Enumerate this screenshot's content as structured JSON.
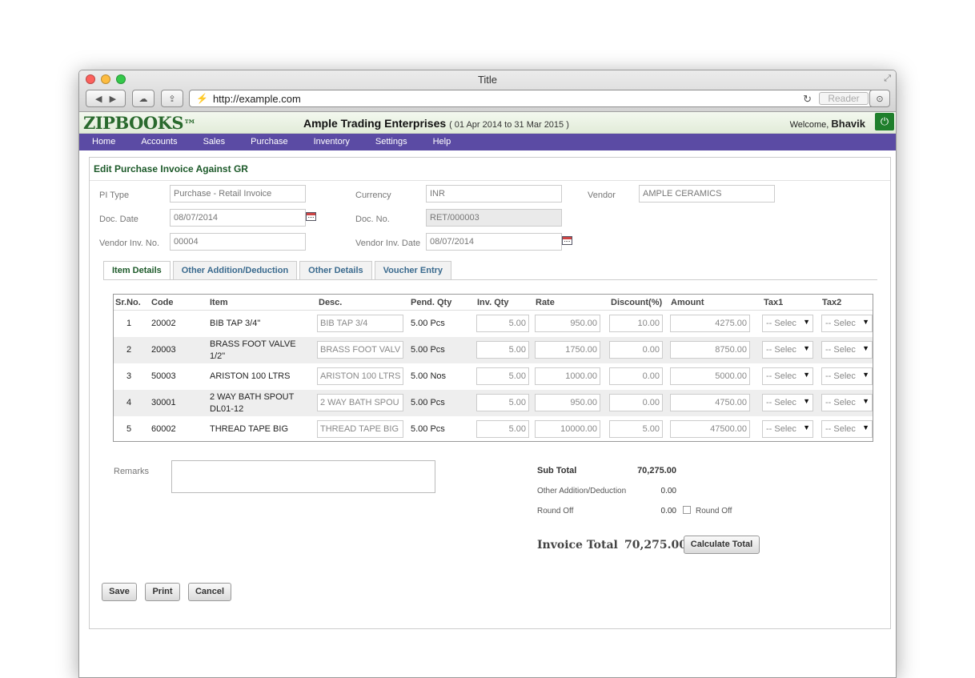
{
  "browser": {
    "title": "Title",
    "url": "http://example.com",
    "reader_label": "Reader"
  },
  "app": {
    "logo": "ZIPBOOKS",
    "logo_tm": "™",
    "company": "Ample Trading Enterprises",
    "period": "( 01 Apr 2014 to 31 Mar 2015 )",
    "welcome_prefix": "Welcome,",
    "user": "Bhavik",
    "power_icon": "⏻"
  },
  "nav": [
    "Home",
    "Accounts",
    "Sales",
    "Purchase",
    "Inventory",
    "Settings",
    "Help"
  ],
  "page_title": "Edit Purchase Invoice Against GR",
  "form": {
    "pi_type_label": "PI Type",
    "pi_type_value": "Purchase - Retail Invoice",
    "currency_label": "Currency",
    "currency_value": "INR",
    "vendor_label": "Vendor",
    "vendor_value": "AMPLE CERAMICS",
    "doc_date_label": "Doc. Date",
    "doc_date_value": "08/07/2014",
    "doc_no_label": "Doc. No.",
    "doc_no_value": "RET/000003",
    "vendor_inv_no_label": "Vendor Inv. No.",
    "vendor_inv_no_value": "00004",
    "vendor_inv_date_label": "Vendor Inv. Date",
    "vendor_inv_date_value": "08/07/2014"
  },
  "tabs": [
    "Item Details",
    "Other Addition/Deduction",
    "Other Details",
    "Voucher Entry"
  ],
  "grid": {
    "headers": [
      "Sr.No.",
      "Code",
      "Item",
      "Desc.",
      "Pend. Qty",
      "Inv. Qty",
      "Rate",
      "Discount(%)",
      "Amount",
      "Tax1",
      "Tax2"
    ],
    "tax_placeholder": "-- Selec",
    "rows": [
      {
        "sr": "1",
        "code": "20002",
        "item": "BIB TAP 3/4\"",
        "desc": "BIB TAP 3/4",
        "pend": "5.00 Pcs",
        "qty": "5.00",
        "rate": "950.00",
        "disc": "10.00",
        "amount": "4275.00"
      },
      {
        "sr": "2",
        "code": "20003",
        "item": "BRASS FOOT VALVE 1/2\"",
        "desc": "BRASS FOOT VALV",
        "pend": "5.00 Pcs",
        "qty": "5.00",
        "rate": "1750.00",
        "disc": "0.00",
        "amount": "8750.00"
      },
      {
        "sr": "3",
        "code": "50003",
        "item": "ARISTON 100 LTRS",
        "desc": "ARISTON 100 LTRS",
        "pend": "5.00 Nos",
        "qty": "5.00",
        "rate": "1000.00",
        "disc": "0.00",
        "amount": "5000.00"
      },
      {
        "sr": "4",
        "code": "30001",
        "item": "2 WAY BATH SPOUT DL01-12",
        "desc": "2 WAY BATH SPOU",
        "pend": "5.00 Pcs",
        "qty": "5.00",
        "rate": "950.00",
        "disc": "0.00",
        "amount": "4750.00"
      },
      {
        "sr": "5",
        "code": "60002",
        "item": "THREAD TAPE BIG",
        "desc": "THREAD TAPE BIG",
        "pend": "5.00 Pcs",
        "qty": "5.00",
        "rate": "10000.00",
        "disc": "5.00",
        "amount": "47500.00"
      }
    ]
  },
  "remarks_label": "Remarks",
  "summary": {
    "sub_total_label": "Sub Total",
    "sub_total": "70,275.00",
    "other_label": "Other Addition/Deduction",
    "other": "0.00",
    "round_off_label": "Round Off",
    "round_off": "0.00",
    "round_off_checkbox_label": "Round Off",
    "invoice_total_label": "Invoice Total",
    "invoice_total": "70,275.00",
    "calculate_label": "Calculate Total"
  },
  "actions": {
    "save": "Save",
    "print": "Print",
    "cancel": "Cancel"
  },
  "colors": {
    "nav_bg": "#5b4ba4",
    "brand_green": "#1d5a2a",
    "power_green": "#1f7f2c"
  }
}
